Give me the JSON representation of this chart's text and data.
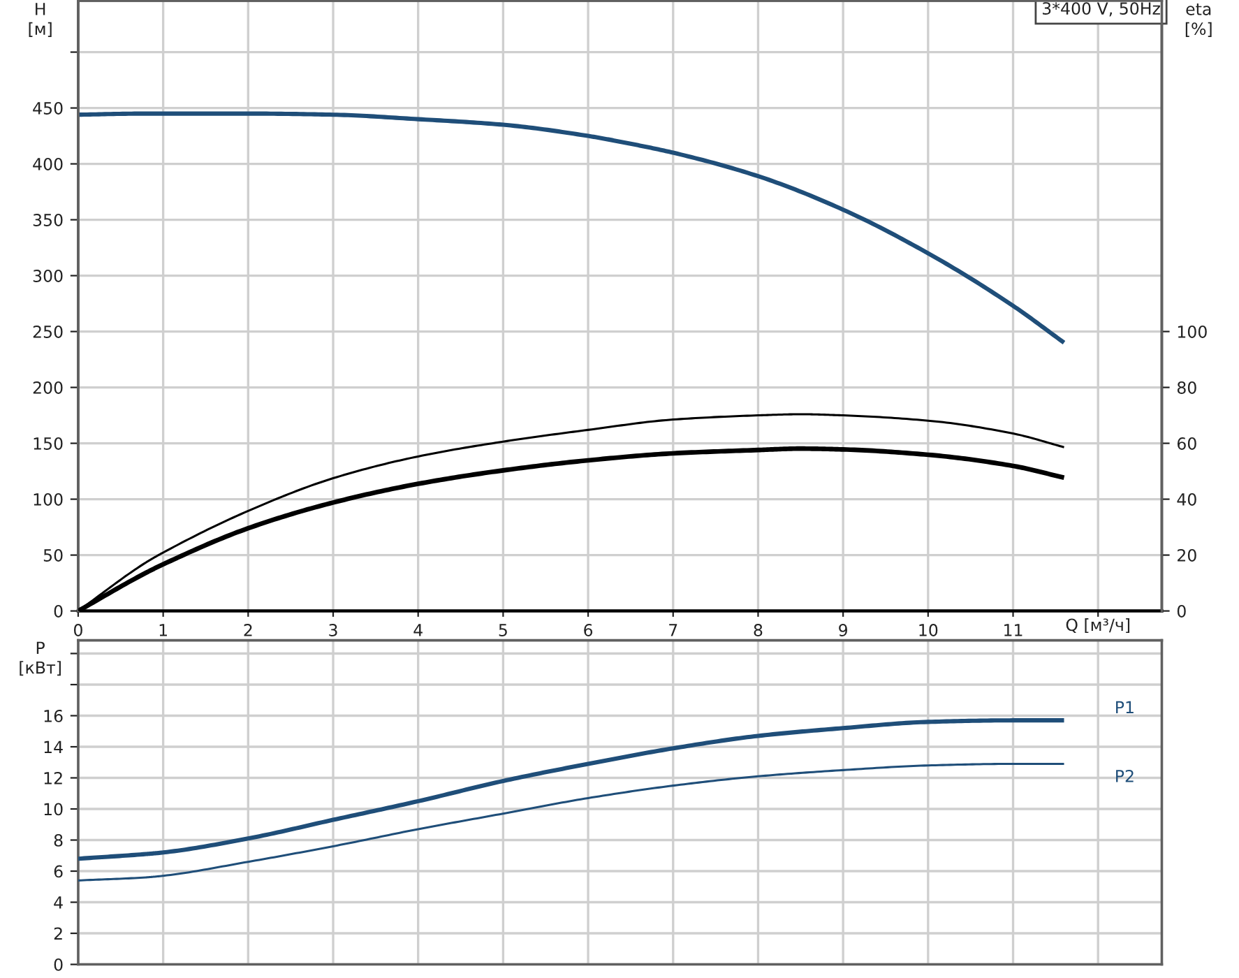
{
  "chart_data": [
    {
      "type": "line",
      "xlabel": "Q [м³/ч]",
      "ylabel": "H\n[м]",
      "y2label": "eta\n[%]",
      "annotations": [
        "3*400 V, 50Hz"
      ],
      "series": [
        {
          "color": "#1f4e79",
          "x": [
            0,
            0.8,
            2,
            3,
            4,
            5,
            6,
            6.5,
            7,
            8,
            9,
            10,
            11,
            11.6
          ],
          "values": [
            444,
            445,
            445,
            444,
            440,
            435,
            425,
            418,
            410,
            389,
            359,
            320,
            273,
            240
          ]
        },
        {
          "color": "#000000",
          "axis": "y2",
          "x": [
            0,
            0.8,
            1,
            2,
            3,
            4,
            5,
            6,
            7,
            8,
            8.5,
            9,
            10,
            11,
            11.6
          ],
          "values": [
            0,
            17.4,
            20.9,
            35.8,
            47.5,
            55.3,
            60.6,
            64.8,
            68.5,
            70.0,
            70.4,
            70.0,
            68.1,
            63.5,
            58.6
          ]
        },
        {
          "color": "#000000",
          "axis": "y2",
          "x": [
            0,
            0.8,
            1,
            2,
            3,
            4,
            5,
            6,
            7,
            8,
            8.5,
            9,
            10,
            11,
            11.6
          ],
          "values": [
            0,
            13.7,
            16.7,
            29.6,
            38.8,
            45.5,
            50.3,
            53.9,
            56.4,
            57.6,
            58.1,
            57.8,
            55.9,
            51.9,
            47.7
          ]
        }
      ],
      "xlim": [
        0,
        12.75
      ],
      "xticks": [
        0,
        1,
        2,
        3,
        4,
        5,
        6,
        7,
        8,
        9,
        10,
        11,
        {
          "value": 12,
          "label": null
        }
      ],
      "ylim": [
        0,
        546
      ],
      "yticks": [
        0,
        50,
        100,
        150,
        200,
        250,
        300,
        350,
        400,
        450,
        {
          "value": 500,
          "label": null
        }
      ],
      "y2lim": [
        0,
        218.4
      ],
      "y2ticks": [
        0,
        20,
        40,
        60,
        80,
        100
      ],
      "grid": true
    },
    {
      "type": "line",
      "ylabel": "P\n[кВт]",
      "series": [
        {
          "name": "P1",
          "color": "#1f4e79",
          "x": [
            0,
            0.8,
            1,
            2,
            3,
            4,
            5,
            6,
            7,
            8,
            9,
            10,
            11,
            11.6
          ],
          "values": [
            6.8,
            7.1,
            7.2,
            8.1,
            9.3,
            10.5,
            11.8,
            12.9,
            13.9,
            14.7,
            15.2,
            15.6,
            15.7,
            15.7
          ]
        },
        {
          "name": "P2",
          "color": "#1f4e79",
          "x": [
            0,
            0.8,
            1,
            2,
            3,
            4,
            5,
            6,
            7,
            8,
            9,
            10,
            11,
            11.6
          ],
          "values": [
            5.4,
            5.6,
            5.7,
            6.6,
            7.6,
            8.7,
            9.7,
            10.7,
            11.5,
            12.1,
            12.5,
            12.8,
            12.9,
            12.9
          ]
        }
      ],
      "xlim": [
        0,
        12.75
      ],
      "xticks": [
        0,
        1,
        2,
        3,
        4,
        5,
        6,
        7,
        8,
        9,
        10,
        11,
        {
          "value": 12,
          "label": null
        }
      ],
      "tick_labels": "y",
      "ylim": [
        0,
        20.85
      ],
      "yticks": [
        0,
        2,
        4,
        6,
        8,
        10,
        12,
        14,
        16,
        {
          "value": 18,
          "label": null
        },
        {
          "value": 20,
          "label": null
        }
      ],
      "grid": true
    }
  ]
}
